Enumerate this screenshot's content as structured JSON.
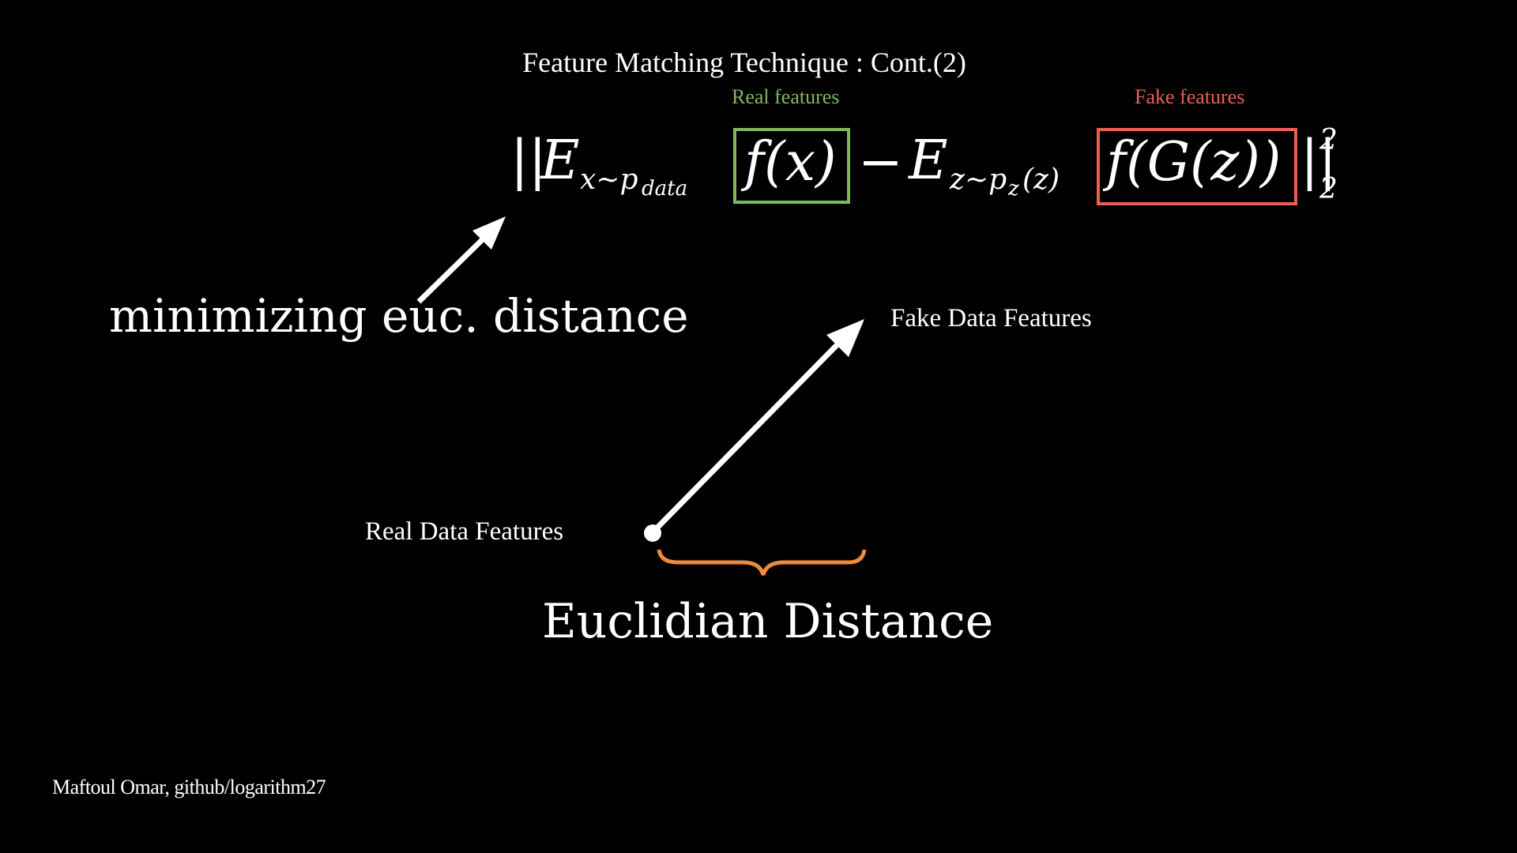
{
  "slide": {
    "title": "Feature Matching Technique : Cont.(2)",
    "credit": "Maftoul Omar, github/logarithm27"
  },
  "formula": {
    "real_label": "Real features",
    "fake_label": "Fake features",
    "norm_open": "||",
    "expect_1": "E",
    "expect_1_sub": "x∼p",
    "expect_1_subsub": "data",
    "real_term": "f(x)",
    "minus": "−",
    "expect_2": "E",
    "expect_2_sub": "z∼p",
    "expect_2_subsub": "z",
    "expect_2_paren": "(z)",
    "fake_term": "f(G(z))",
    "norm_close": "||",
    "superscript": "2",
    "subscript": "2"
  },
  "annotations": {
    "minimizing": "minimizing euc.  distance",
    "fake_point": "Fake Data Features",
    "real_point": "Real Data Features",
    "distance": "Euclidian Distance"
  },
  "colors": {
    "background": "#000000",
    "foreground": "#ffffff",
    "real": "#7fb85c",
    "fake": "#e8614f",
    "brace": "#f08a3c"
  }
}
